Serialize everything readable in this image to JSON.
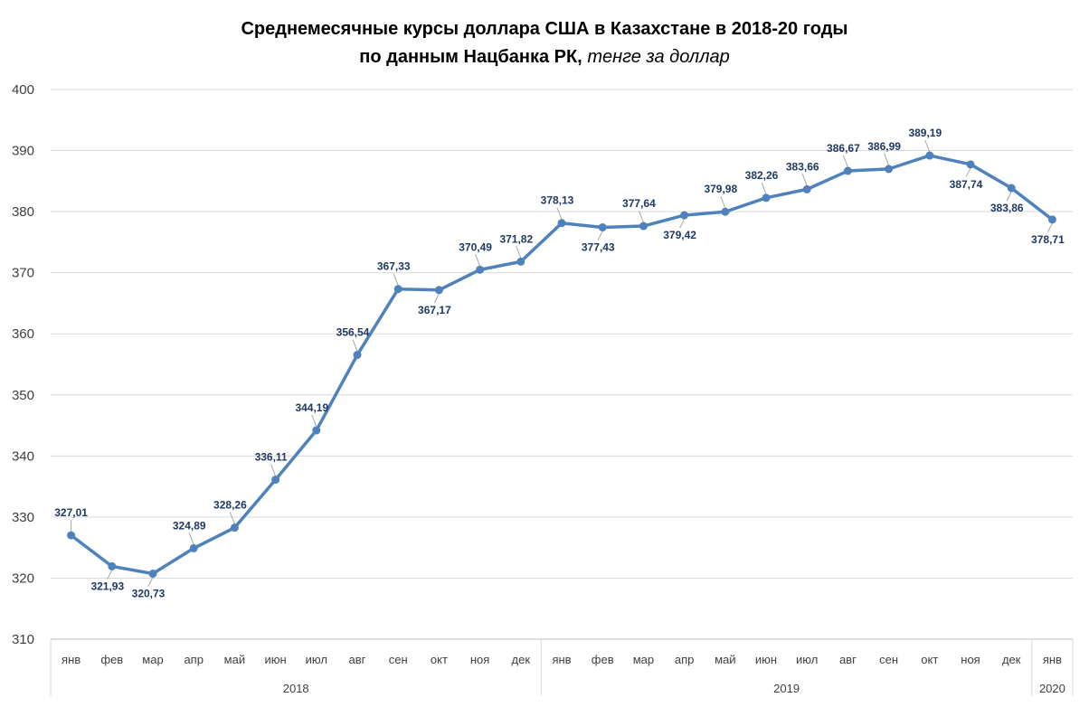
{
  "chart_data": {
    "type": "line",
    "title": "Среднемесячные курсы доллара США в Казахстане в 2018-20 годы",
    "subtitle_prefix": "по данным Нацбанка РК,",
    "subtitle_unit": "тенге за доллар",
    "ylim": [
      310,
      400
    ],
    "yticks": [
      "310",
      "320",
      "330",
      "340",
      "350",
      "360",
      "370",
      "380",
      "390",
      "400"
    ],
    "grid": true,
    "legend": "none",
    "categories": [
      "янв",
      "фев",
      "мар",
      "апр",
      "май",
      "июн",
      "июл",
      "авг",
      "сен",
      "окт",
      "ноя",
      "дек",
      "янв",
      "фев",
      "мар",
      "апр",
      "май",
      "июн",
      "июл",
      "авг",
      "сен",
      "окт",
      "ноя",
      "дек",
      "янв"
    ],
    "years": [
      {
        "label": "2018",
        "count": 12
      },
      {
        "label": "2019",
        "count": 12
      },
      {
        "label": "2020",
        "count": 1
      }
    ],
    "series": [
      {
        "color": "#4f81bd",
        "values": [
          327.01,
          321.93,
          320.73,
          324.89,
          328.26,
          336.11,
          344.19,
          356.54,
          367.33,
          367.17,
          370.49,
          371.82,
          378.13,
          377.43,
          377.64,
          379.42,
          379.98,
          382.26,
          383.66,
          386.67,
          386.99,
          389.19,
          387.74,
          383.86,
          378.71
        ],
        "labels": [
          "327,01",
          "321,93",
          "320,73",
          "324,89",
          "328,26",
          "336,11",
          "344,19",
          "356,54",
          "367,33",
          "367,17",
          "370,49",
          "371,82",
          "378,13",
          "377,43",
          "377,64",
          "379,42",
          "379,98",
          "382,26",
          "383,66",
          "386,67",
          "386,99",
          "389,19",
          "387,74",
          "383,86",
          "378,71"
        ]
      }
    ]
  }
}
